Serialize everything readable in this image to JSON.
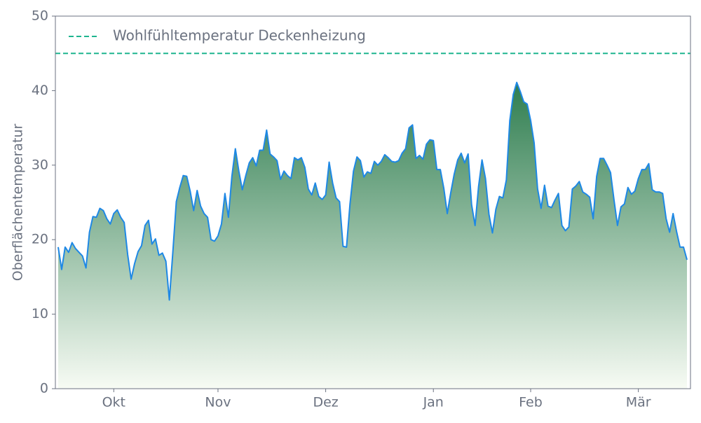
{
  "chart_data": {
    "type": "area",
    "ylabel": "Oberflächentemperatur",
    "ylim": [
      0,
      50
    ],
    "yticks": [
      0,
      10,
      20,
      30,
      40,
      50
    ],
    "line_color": "#1e88e5",
    "fill_gradient": [
      "#2e7d4f",
      "#f7fbf4"
    ],
    "reference_lines": [
      {
        "value": 45,
        "label": "Wohlfühltemperatur Deckenheizung",
        "color": "#1fb58f",
        "style": "dashed"
      }
    ],
    "legend": "upper left",
    "categories": [
      null,
      null,
      null,
      null,
      null,
      null,
      null,
      null,
      null,
      null,
      null,
      null,
      null,
      null,
      null,
      null,
      "Okt",
      null,
      null,
      null,
      null,
      null,
      null,
      null,
      null,
      null,
      null,
      null,
      null,
      null,
      null,
      null,
      null,
      null,
      null,
      null,
      null,
      null,
      null,
      null,
      null,
      null,
      null,
      null,
      null,
      null,
      "Nov",
      null,
      null,
      null,
      null,
      null,
      null,
      null,
      null,
      null,
      null,
      null,
      null,
      null,
      null,
      null,
      null,
      null,
      null,
      null,
      null,
      null,
      null,
      null,
      null,
      null,
      null,
      null,
      null,
      null,
      null,
      "Dez",
      null,
      null,
      null,
      null,
      null,
      null,
      null,
      null,
      null,
      null,
      null,
      null,
      null,
      null,
      null,
      null,
      null,
      null,
      null,
      null,
      null,
      null,
      null,
      null,
      null,
      null,
      null,
      null,
      null,
      null,
      "Jan",
      null,
      null,
      null,
      null,
      null,
      null,
      null,
      null,
      null,
      null,
      null,
      null,
      null,
      null,
      null,
      null,
      null,
      null,
      null,
      null,
      null,
      null,
      null,
      null,
      null,
      null,
      null,
      "Feb",
      null,
      null,
      null,
      null,
      null,
      null,
      null,
      null,
      null,
      null,
      null,
      null,
      null,
      null,
      null,
      null,
      null,
      null,
      null,
      null,
      null,
      null,
      null,
      null,
      null,
      null,
      null,
      null,
      null,
      null,
      "Mär",
      null,
      null,
      null,
      null,
      null,
      null,
      null,
      null,
      null,
      null,
      null,
      null,
      null,
      null
    ],
    "values": [
      19,
      16,
      19,
      18.3,
      19.6,
      18.8,
      18.3,
      17.8,
      16.2,
      21,
      23.1,
      23,
      24.2,
      23.9,
      22.8,
      22.1,
      23.5,
      24,
      23,
      22.3,
      18,
      14.7,
      16.8,
      18.4,
      19.2,
      21.9,
      22.6,
      19.4,
      20.1,
      17.9,
      18.2,
      17.1,
      11.9,
      18.3,
      25.1,
      27,
      28.6,
      28.5,
      26.5,
      23.9,
      26.6,
      24.5,
      23.5,
      23,
      20,
      19.8,
      20.5,
      22.1,
      26.2,
      23,
      28.5,
      32.2,
      29.2,
      26.7,
      28.6,
      30.3,
      31,
      29.9,
      32,
      32,
      34.7,
      31.5,
      31.1,
      30.6,
      28.1,
      29.2,
      28.6,
      28.2,
      31,
      30.7,
      31,
      29.7,
      26.8,
      26,
      27.6,
      25.8,
      25.4,
      26,
      30.4,
      27.6,
      25.6,
      25.1,
      19.1,
      19,
      24.8,
      29.2,
      31.1,
      30.6,
      28.4,
      29.1,
      28.9,
      30.5,
      30,
      30.5,
      31.4,
      31,
      30.5,
      30.4,
      30.6,
      31.6,
      32.2,
      35,
      35.4,
      30.9,
      31.3,
      30.8,
      32.8,
      33.4,
      33.3,
      29.4,
      29.4,
      26.9,
      23.5,
      26.3,
      28.8,
      30.7,
      31.6,
      30.3,
      31.5,
      24.7,
      21.9,
      27.1,
      30.7,
      28.2,
      23.4,
      20.9,
      24.1,
      25.8,
      25.6,
      28,
      36,
      39.5,
      41.1,
      39.9,
      38.5,
      38.2,
      36,
      33,
      26.8,
      24.2,
      27.3,
      24.5,
      24.3,
      25.3,
      26.2,
      21.9,
      21.2,
      21.7,
      26.8,
      27.2,
      27.8,
      26.4,
      26.1,
      25.7,
      22.8,
      28.5,
      30.9,
      30.9,
      30,
      29,
      25.3,
      21.9,
      24.4,
      24.8,
      27,
      26.1,
      26.5,
      28.2,
      29.4,
      29.4,
      30.2,
      26.7,
      26.4,
      26.4,
      26.2,
      22.8,
      21,
      23.5,
      21.1,
      19,
      19,
      17.3
    ]
  }
}
